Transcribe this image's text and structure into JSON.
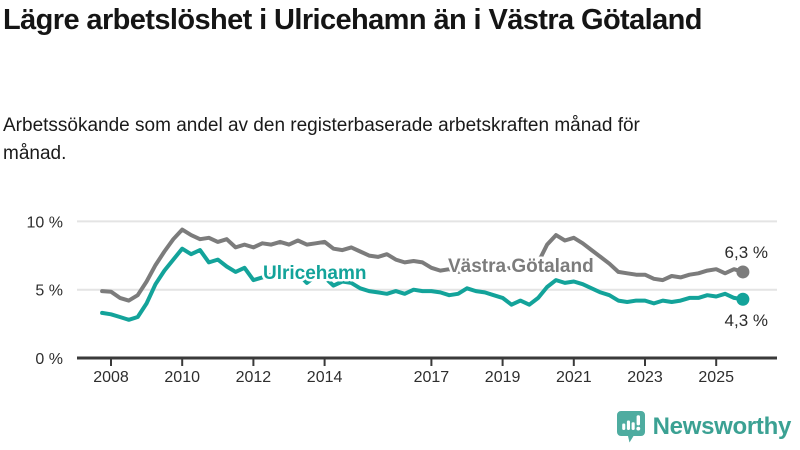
{
  "header": {
    "title": "Lägre arbetslöshet i Ulricehamn än i Västra Götaland",
    "subtitle": "Arbetssökande som andel av den registerbaserade arbetskraften månad för månad."
  },
  "footer": {
    "brand": "Newsworthy",
    "brand_text_color": "#3ba193",
    "brand_icon": "bar-chart-speech-bubble-icon",
    "brand_icon_color": "#4eaca0"
  },
  "chart_data": {
    "type": "line",
    "title": "Lägre arbetslöshet i Ulricehamn än i Västra Götaland",
    "xlabel": "",
    "ylabel": "",
    "x_unit": "decimal_year",
    "xlim": [
      2007.5,
      2026.3
    ],
    "ylim": [
      0,
      10.5
    ],
    "grid": "horizontal",
    "legend_position": "inline-labels",
    "colors": {
      "ulricehamn": "#13a39a",
      "vastra_gotaland": "#7c7c7c",
      "gridline": "#e4e4e4",
      "axis": "#3a3a3a"
    },
    "yticks": [
      {
        "v": 0,
        "label": "0 %"
      },
      {
        "v": 5,
        "label": "5 %"
      },
      {
        "v": 10,
        "label": "10 %"
      }
    ],
    "xticks": [
      {
        "v": 2008,
        "label": "2008"
      },
      {
        "v": 2010,
        "label": "2010"
      },
      {
        "v": 2012,
        "label": "2012"
      },
      {
        "v": 2014,
        "label": "2014"
      },
      {
        "v": 2017,
        "label": "2017"
      },
      {
        "v": 2019,
        "label": "2019"
      },
      {
        "v": 2021,
        "label": "2021"
      },
      {
        "v": 2023,
        "label": "2023"
      },
      {
        "v": 2025,
        "label": "2025"
      }
    ],
    "x": [
      2007.75,
      2008,
      2008.25,
      2008.5,
      2008.75,
      2009,
      2009.25,
      2009.5,
      2009.75,
      2010,
      2010.25,
      2010.5,
      2010.75,
      2011,
      2011.25,
      2011.5,
      2011.75,
      2012,
      2012.25,
      2012.5,
      2012.75,
      2013,
      2013.25,
      2013.5,
      2013.75,
      2014,
      2014.25,
      2014.5,
      2014.75,
      2015,
      2015.25,
      2015.5,
      2015.75,
      2016,
      2016.25,
      2016.5,
      2016.75,
      2017,
      2017.25,
      2017.5,
      2017.75,
      2018,
      2018.25,
      2018.5,
      2018.75,
      2019,
      2019.25,
      2019.5,
      2019.75,
      2020,
      2020.25,
      2020.5,
      2020.75,
      2021,
      2021.25,
      2021.5,
      2021.75,
      2022,
      2022.25,
      2022.5,
      2022.75,
      2023,
      2023.25,
      2023.5,
      2023.75,
      2024,
      2024.25,
      2024.5,
      2024.75,
      2025,
      2025.25,
      2025.5,
      2025.75
    ],
    "series": [
      {
        "name": "Västra Götaland",
        "color": "#7c7c7c",
        "end_label": "6,3 %",
        "end_value": 6.3,
        "values": [
          4.9,
          4.85,
          4.4,
          4.2,
          4.6,
          5.6,
          6.8,
          7.8,
          8.7,
          9.4,
          9.0,
          8.7,
          8.8,
          8.5,
          8.7,
          8.1,
          8.3,
          8.1,
          8.4,
          8.3,
          8.5,
          8.3,
          8.6,
          8.3,
          8.4,
          8.5,
          8.0,
          7.9,
          8.1,
          7.8,
          7.5,
          7.4,
          7.6,
          7.2,
          7.0,
          7.1,
          7.0,
          6.6,
          6.4,
          6.5,
          6.3,
          6.4,
          6.3,
          6.5,
          6.4,
          6.5,
          6.6,
          6.6,
          6.8,
          7.0,
          8.3,
          9.0,
          8.6,
          8.8,
          8.4,
          7.9,
          7.4,
          6.9,
          6.3,
          6.2,
          6.1,
          6.1,
          5.8,
          5.7,
          6.0,
          5.9,
          6.1,
          6.2,
          6.4,
          6.5,
          6.2,
          6.5,
          6.3
        ]
      },
      {
        "name": "Ulricehamn",
        "color": "#13a39a",
        "end_label": "4,3 %",
        "end_value": 4.3,
        "values": [
          3.3,
          3.2,
          3.0,
          2.8,
          3.0,
          4.0,
          5.4,
          6.4,
          7.2,
          8.0,
          7.6,
          7.9,
          7.0,
          7.2,
          6.7,
          6.3,
          6.6,
          5.7,
          5.9,
          6.1,
          5.8,
          6.0,
          6.2,
          5.5,
          6.0,
          5.9,
          5.3,
          5.6,
          5.5,
          5.1,
          4.9,
          4.8,
          4.7,
          4.9,
          4.7,
          5.0,
          4.9,
          4.9,
          4.8,
          4.6,
          4.7,
          5.1,
          4.9,
          4.8,
          4.6,
          4.4,
          3.9,
          4.2,
          3.9,
          4.4,
          5.2,
          5.7,
          5.5,
          5.6,
          5.4,
          5.1,
          4.8,
          4.6,
          4.2,
          4.1,
          4.2,
          4.2,
          4.0,
          4.2,
          4.1,
          4.2,
          4.4,
          4.4,
          4.6,
          4.5,
          4.7,
          4.4,
          4.3
        ]
      }
    ]
  }
}
